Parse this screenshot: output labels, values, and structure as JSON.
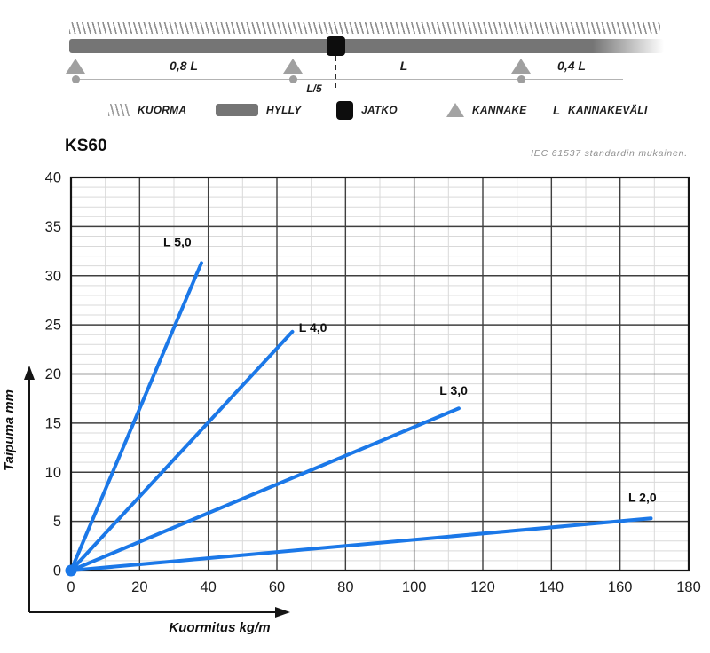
{
  "page": {
    "title_model": "KS60",
    "standard_note": "IEC 61537 standardin mukainen."
  },
  "schematic": {
    "labels": {
      "span_left": "0,8 L",
      "span_mid": "L",
      "span_right": "0,4 L",
      "joint_offset": "L/5"
    }
  },
  "legend": {
    "items": [
      {
        "icon": "load-hatch",
        "label": "KUORMA"
      },
      {
        "icon": "shelf-bar",
        "label": "HYLLY"
      },
      {
        "icon": "joint-square",
        "label": "JATKO"
      },
      {
        "icon": "support-triangle",
        "label": "KANNAKE"
      },
      {
        "icon": "letter-L",
        "symbol": "L",
        "label": "KANNAKEVÄLI"
      }
    ]
  },
  "chart_data": {
    "type": "line",
    "title": "KS60",
    "xlabel": "Kuormitus kg/m",
    "ylabel": "Taipuma mm",
    "xlim": [
      0,
      180
    ],
    "ylim": [
      0,
      40
    ],
    "x_ticks": [
      0,
      20,
      40,
      60,
      80,
      100,
      120,
      140,
      160,
      180
    ],
    "y_ticks": [
      0,
      5,
      10,
      15,
      20,
      25,
      30,
      35,
      40
    ],
    "x_minor_step": 10,
    "y_minor_step": 1,
    "x_major_step": 20,
    "y_major_step": 5,
    "grid": true,
    "legend_position": "inline-labels",
    "line_color": "#1b78e8",
    "major_grid_color": "#3f3f3f",
    "minor_grid_color": "#d9d9d9",
    "series": [
      {
        "name": "L 5,0",
        "points": [
          [
            0,
            0
          ],
          [
            38,
            31.3
          ]
        ],
        "label_pos": [
          31,
          33.0
        ]
      },
      {
        "name": "L 4,0",
        "points": [
          [
            0,
            0
          ],
          [
            64.5,
            24.3
          ]
        ],
        "label_pos": [
          70.5,
          24.3
        ]
      },
      {
        "name": "L 3,0",
        "points": [
          [
            0,
            0
          ],
          [
            113,
            16.5
          ]
        ],
        "label_pos": [
          111.5,
          17.9
        ]
      },
      {
        "name": "L 2,0",
        "points": [
          [
            0,
            0
          ],
          [
            169,
            5.3
          ]
        ],
        "label_pos": [
          166.5,
          7.0
        ]
      }
    ]
  }
}
